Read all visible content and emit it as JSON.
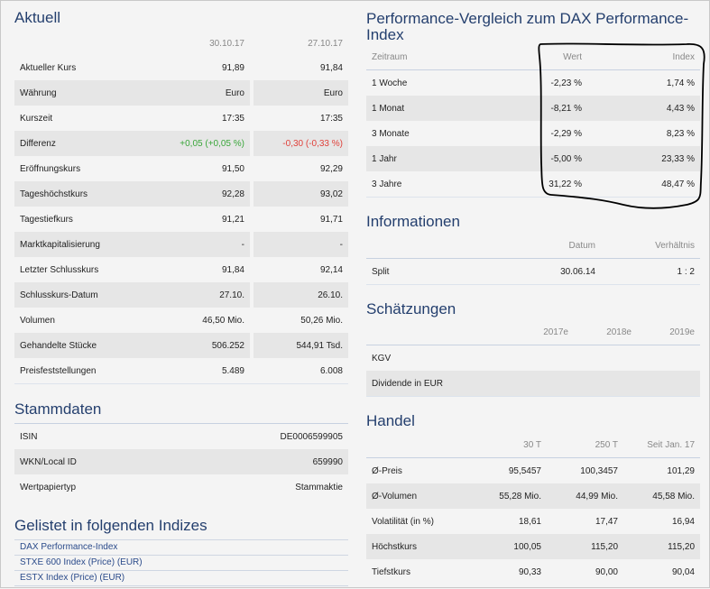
{
  "aktuell": {
    "title": "Aktuell",
    "dates": [
      "30.10.17",
      "27.10.17"
    ],
    "rows": [
      {
        "label": "Aktueller Kurs",
        "a": "91,89",
        "b": "91,84"
      },
      {
        "label": "Währung",
        "a": "Euro",
        "b": "Euro"
      },
      {
        "label": "Kurszeit",
        "a": "17:35",
        "b": "17:35"
      },
      {
        "label": "Differenz",
        "a": "+0,05 (+0,05 %)",
        "b": "-0,30 (-0,33 %)"
      },
      {
        "label": "Eröffnungskurs",
        "a": "91,50",
        "b": "92,29"
      },
      {
        "label": "Tageshöchstkurs",
        "a": "92,28",
        "b": "93,02"
      },
      {
        "label": "Tagestiefkurs",
        "a": "91,21",
        "b": "91,71"
      },
      {
        "label": "Marktkapitalisierung",
        "a": "-",
        "b": "-"
      },
      {
        "label": "Letzter Schlusskurs",
        "a": "91,84",
        "b": "92,14"
      },
      {
        "label": "Schlusskurs-Datum",
        "a": "27.10.",
        "b": "26.10."
      },
      {
        "label": "Volumen",
        "a": "46,50 Mio.",
        "b": "50,26 Mio."
      },
      {
        "label": "Gehandelte Stücke",
        "a": "506.252",
        "b": "544,91 Tsd."
      },
      {
        "label": "Preisfeststellungen",
        "a": "5.489",
        "b": "6.008"
      }
    ]
  },
  "stammdaten": {
    "title": "Stammdaten",
    "rows": [
      {
        "label": "ISIN",
        "value": "DE0006599905"
      },
      {
        "label": "WKN/Local ID",
        "value": "659990"
      },
      {
        "label": "Wertpapiertyp",
        "value": "Stammaktie"
      }
    ]
  },
  "indizes": {
    "title": "Gelistet in folgenden Indizes",
    "links": [
      "DAX Performance-Index",
      "STXE 600 Index (Price) (EUR)",
      "ESTX Index (Price) (EUR)"
    ]
  },
  "performance": {
    "title_line1": "Performance-Vergleich zum DAX Performance-",
    "title_line2": "Index",
    "headers": {
      "zeitraum": "Zeitraum",
      "wert": "Wert",
      "index": "Index"
    },
    "rows": [
      {
        "zeitraum": "1 Woche",
        "wert": "-2,23 %",
        "index": "1,74 %"
      },
      {
        "zeitraum": "1 Monat",
        "wert": "-8,21 %",
        "index": "4,43 %"
      },
      {
        "zeitraum": "3 Monate",
        "wert": "-2,29 %",
        "index": "8,23 %"
      },
      {
        "zeitraum": "1 Jahr",
        "wert": "-5,00 %",
        "index": "23,33 %"
      },
      {
        "zeitraum": "3 Jahre",
        "wert": "31,22 %",
        "index": "48,47 %"
      }
    ]
  },
  "informationen": {
    "title": "Informationen",
    "headers": {
      "datum": "Datum",
      "verhaeltnis": "Verhältnis"
    },
    "rows": [
      {
        "label": "Split",
        "datum": "30.06.14",
        "verhaeltnis": "1 : 2"
      }
    ]
  },
  "schaetzungen": {
    "title": "Schätzungen",
    "years": [
      "2017e",
      "2018e",
      "2019e"
    ],
    "rows": [
      {
        "label": "KGV"
      },
      {
        "label": "Dividende in EUR"
      }
    ]
  },
  "handel": {
    "title": "Handel",
    "headers": [
      "30 T",
      "250 T",
      "Seit Jan. 17"
    ],
    "rows": [
      {
        "label": "Ø-Preis",
        "a": "95,5457",
        "b": "100,3457",
        "c": "101,29"
      },
      {
        "label": "Ø-Volumen",
        "a": "55,28 Mio.",
        "b": "44,99 Mio.",
        "c": "45,58 Mio."
      },
      {
        "label": "Volatilität (in %)",
        "a": "18,61",
        "b": "17,47",
        "c": "16,94"
      },
      {
        "label": "Höchstkurs",
        "a": "100,05",
        "b": "115,20",
        "c": "115,20"
      },
      {
        "label": "Tiefstkurs",
        "a": "90,33",
        "b": "90,00",
        "c": "90,04"
      }
    ]
  }
}
